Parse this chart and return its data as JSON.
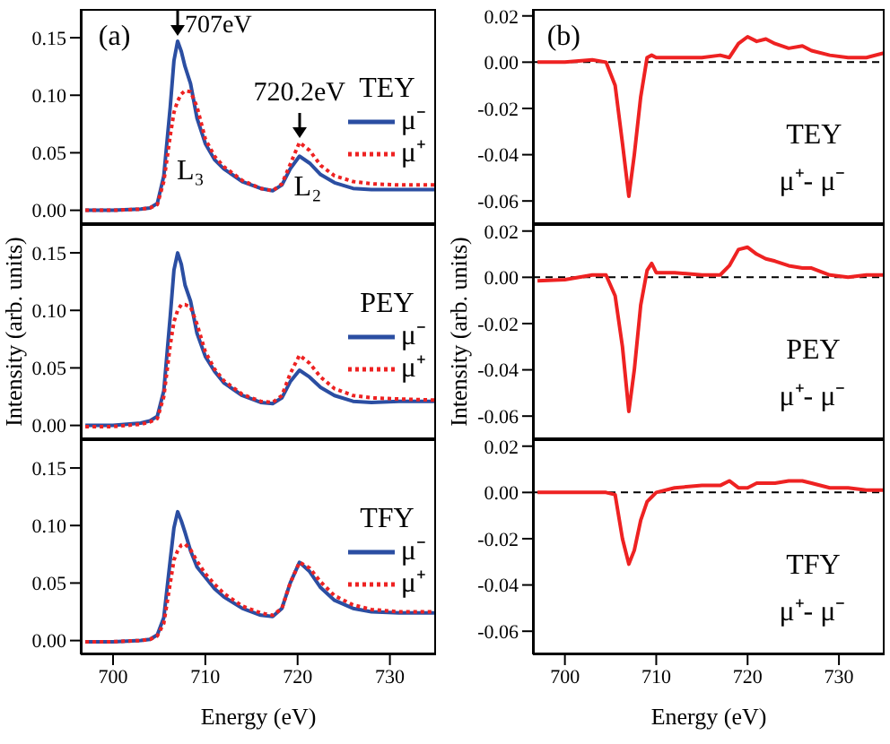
{
  "chart_data": [
    {
      "type": "line",
      "annotations": [
        "(a)",
        {
          "text": "707eV",
          "x": 707,
          "y": 0.15
        },
        {
          "text": "720.2eV",
          "x": 720.2,
          "y": 0.062
        },
        "L₃",
        "L₂"
      ],
      "legend_title": "TEY",
      "legend": "right",
      "marker": "none",
      "tick_labels": "y",
      "xlim": [
        696.5,
        735
      ],
      "xticks": [
        700,
        710,
        720,
        730
      ],
      "ylim": [
        -0.012,
        0.175
      ],
      "yticks": [
        {
          "value": 0,
          "label": "0.00"
        },
        {
          "value": 0.05,
          "label": "0.05"
        },
        {
          "value": 0.1,
          "label": "0.10"
        },
        {
          "value": 0.15,
          "label": "0.15"
        }
      ],
      "x": [
        697,
        700,
        703,
        704,
        704.8,
        705.5,
        706.2,
        706.6,
        707,
        707.4,
        707.8,
        708.4,
        709.1,
        710,
        711,
        712,
        714,
        716,
        717.3,
        718.3,
        719.2,
        720.2,
        721.3,
        722.5,
        724,
        726,
        728,
        731,
        735
      ],
      "series": [
        {
          "name": "μ⁻",
          "color": "#2b4ea2",
          "line_style": "solid",
          "values": [
            0,
            0,
            0.001,
            0.002,
            0.006,
            0.03,
            0.09,
            0.13,
            0.147,
            0.138,
            0.125,
            0.11,
            0.08,
            0.058,
            0.044,
            0.036,
            0.025,
            0.019,
            0.017,
            0.022,
            0.036,
            0.047,
            0.041,
            0.031,
            0.024,
            0.019,
            0.018,
            0.018,
            0.018
          ]
        },
        {
          "name": "μ⁺",
          "color": "#ee2222",
          "line_style": "dotted",
          "values": [
            0,
            0,
            0.001,
            0.002,
            0.005,
            0.025,
            0.065,
            0.085,
            0.095,
            0.101,
            0.104,
            0.103,
            0.09,
            0.062,
            0.047,
            0.038,
            0.026,
            0.019,
            0.017,
            0.023,
            0.04,
            0.059,
            0.052,
            0.039,
            0.03,
            0.025,
            0.023,
            0.022,
            0.022
          ]
        }
      ]
    },
    {
      "type": "line",
      "ylabel": "Intensity (arb. units)",
      "legend_title": "PEY",
      "legend": "right",
      "marker": "none",
      "tick_labels": "y",
      "xlim": [
        696.5,
        735
      ],
      "xticks": [
        700,
        710,
        720,
        730
      ],
      "ylim": [
        -0.012,
        0.175
      ],
      "yticks": [
        {
          "value": 0,
          "label": "0.00"
        },
        {
          "value": 0.05,
          "label": "0.05"
        },
        {
          "value": 0.1,
          "label": "0.10"
        },
        {
          "value": 0.15,
          "label": "0.15"
        }
      ],
      "x": [
        697,
        700,
        703,
        704,
        704.8,
        705.5,
        706.2,
        706.6,
        707,
        707.4,
        707.8,
        708.4,
        709.1,
        710,
        711,
        712,
        714,
        716,
        717.3,
        718.3,
        719.2,
        720.2,
        721.3,
        722.5,
        724,
        726,
        728,
        731,
        735
      ],
      "series": [
        {
          "name": "μ⁻",
          "color": "#2b4ea2",
          "line_style": "solid",
          "values": [
            0,
            0,
            0.002,
            0.004,
            0.008,
            0.03,
            0.095,
            0.135,
            0.15,
            0.14,
            0.122,
            0.108,
            0.08,
            0.06,
            0.047,
            0.037,
            0.026,
            0.02,
            0.019,
            0.024,
            0.038,
            0.048,
            0.042,
            0.033,
            0.026,
            0.021,
            0.02,
            0.021,
            0.021
          ]
        },
        {
          "name": "μ⁺",
          "color": "#ee2222",
          "line_style": "dotted",
          "values": [
            -0.001,
            -0.001,
            0.001,
            0.003,
            0.006,
            0.025,
            0.07,
            0.09,
            0.1,
            0.105,
            0.105,
            0.103,
            0.088,
            0.064,
            0.049,
            0.039,
            0.027,
            0.021,
            0.02,
            0.026,
            0.045,
            0.061,
            0.054,
            0.042,
            0.032,
            0.026,
            0.024,
            0.023,
            0.022
          ]
        }
      ]
    },
    {
      "type": "line",
      "xlabel": "Energy (eV)",
      "legend_title": "TFY",
      "legend": "right",
      "marker": "none",
      "xlim": [
        696.5,
        735
      ],
      "xticks": [
        700,
        710,
        720,
        730
      ],
      "ylim": [
        -0.012,
        0.175
      ],
      "yticks": [
        {
          "value": 0,
          "label": "0.00"
        },
        {
          "value": 0.05,
          "label": "0.05"
        },
        {
          "value": 0.1,
          "label": "0.10"
        },
        {
          "value": 0.15,
          "label": "0.15"
        }
      ],
      "x": [
        697,
        700,
        703,
        704,
        704.8,
        705.5,
        706.2,
        706.6,
        707,
        707.4,
        707.8,
        708.4,
        709.1,
        710,
        711,
        712,
        714,
        716,
        717.3,
        718.3,
        719.2,
        720.2,
        721.3,
        722.5,
        724,
        726,
        728,
        731,
        735
      ],
      "series": [
        {
          "name": "μ⁻",
          "color": "#2b4ea2",
          "line_style": "solid",
          "values": [
            -0.001,
            -0.001,
            0,
            0.001,
            0.005,
            0.02,
            0.07,
            0.098,
            0.112,
            0.104,
            0.094,
            0.078,
            0.064,
            0.055,
            0.045,
            0.038,
            0.028,
            0.022,
            0.021,
            0.028,
            0.05,
            0.068,
            0.06,
            0.046,
            0.035,
            0.028,
            0.025,
            0.024,
            0.024
          ]
        },
        {
          "name": "μ⁺",
          "color": "#ee2222",
          "line_style": "dotted",
          "values": [
            -0.001,
            -0.001,
            0,
            0.001,
            0.004,
            0.015,
            0.05,
            0.07,
            0.078,
            0.083,
            0.084,
            0.079,
            0.069,
            0.058,
            0.049,
            0.041,
            0.03,
            0.024,
            0.022,
            0.028,
            0.05,
            0.068,
            0.063,
            0.051,
            0.039,
            0.031,
            0.027,
            0.025,
            0.025
          ]
        }
      ]
    },
    {
      "type": "line",
      "annotations": [
        "(b)",
        "TEY",
        "μ⁺- μ⁻"
      ],
      "marker": "none",
      "tick_labels": "y",
      "xlim": [
        696.5,
        735
      ],
      "xticks": [
        700,
        710,
        720,
        730
      ],
      "ylim": [
        -0.07,
        0.023
      ],
      "yticks": [
        {
          "value": -0.06,
          "label": "-0.06"
        },
        {
          "value": -0.04,
          "label": "-0.04"
        },
        {
          "value": -0.02,
          "label": "-0.02"
        },
        {
          "value": 0,
          "label": "0.00"
        },
        {
          "value": 0.02,
          "label": "0.02"
        }
      ],
      "ref_lines": [
        {
          "axis": "y",
          "value": 0,
          "color": "#000000",
          "line_style": "dashed"
        }
      ],
      "x": [
        697,
        700,
        703,
        704.5,
        705.5,
        706.3,
        707,
        707.6,
        708.3,
        709,
        709.5,
        710,
        712,
        715,
        717,
        718,
        719,
        720,
        721,
        722,
        723,
        724.5,
        726,
        727,
        729,
        731,
        733,
        735
      ],
      "series": [
        {
          "color": "#ee2222",
          "line_style": "solid",
          "values": [
            0,
            0,
            0.001,
            0,
            -0.01,
            -0.035,
            -0.058,
            -0.04,
            -0.015,
            0.002,
            0.003,
            0.002,
            0.002,
            0.002,
            0.003,
            0.002,
            0.008,
            0.011,
            0.009,
            0.01,
            0.008,
            0.006,
            0.007,
            0.005,
            0.003,
            0.002,
            0.002,
            0.004
          ]
        }
      ]
    },
    {
      "type": "line",
      "annotations": [
        "PEY",
        "μ⁺- μ⁻"
      ],
      "ylabel": "Intensity (arb. units)",
      "marker": "none",
      "tick_labels": "y",
      "xlim": [
        696.5,
        735
      ],
      "xticks": [
        700,
        710,
        720,
        730
      ],
      "ylim": [
        -0.07,
        0.023
      ],
      "yticks": [
        {
          "value": -0.06,
          "label": "-0.06"
        },
        {
          "value": -0.04,
          "label": "-0.04"
        },
        {
          "value": -0.02,
          "label": "-0.02"
        },
        {
          "value": 0,
          "label": "0.00"
        },
        {
          "value": 0.02,
          "label": "0.02"
        }
      ],
      "ref_lines": [
        {
          "axis": "y",
          "value": 0,
          "color": "#000000",
          "line_style": "dashed"
        }
      ],
      "x": [
        697,
        700,
        703,
        704.5,
        705.5,
        706.3,
        707,
        707.6,
        708.3,
        709,
        709.5,
        710,
        712,
        715,
        717,
        718,
        719,
        720,
        721,
        722,
        723,
        724.5,
        726,
        727,
        729,
        731,
        733,
        735
      ],
      "series": [
        {
          "color": "#ee2222",
          "line_style": "solid",
          "values": [
            -0.0015,
            -0.001,
            0.001,
            0.001,
            -0.008,
            -0.03,
            -0.058,
            -0.04,
            -0.012,
            0.003,
            0.006,
            0.002,
            0.002,
            0.001,
            0.001,
            0.005,
            0.012,
            0.013,
            0.01,
            0.008,
            0.007,
            0.005,
            0.004,
            0.004,
            0.001,
            0,
            0.001,
            0.001
          ]
        }
      ]
    },
    {
      "type": "line",
      "annotations": [
        "TFY",
        "μ⁺- μ⁻"
      ],
      "xlabel": "Energy (eV)",
      "marker": "none",
      "xlim": [
        696.5,
        735
      ],
      "xticks": [
        700,
        710,
        720,
        730
      ],
      "ylim": [
        -0.07,
        0.023
      ],
      "yticks": [
        {
          "value": -0.06,
          "label": "-0.06"
        },
        {
          "value": -0.04,
          "label": "-0.04"
        },
        {
          "value": -0.02,
          "label": "-0.02"
        },
        {
          "value": 0,
          "label": "0.00"
        },
        {
          "value": 0.02,
          "label": "0.02"
        }
      ],
      "ref_lines": [
        {
          "axis": "y",
          "value": 0,
          "color": "#000000",
          "line_style": "dashed"
        }
      ],
      "x": [
        697,
        700,
        703,
        704.5,
        705.5,
        706.3,
        707,
        707.6,
        708.3,
        709,
        709.5,
        710,
        712,
        715,
        717,
        718,
        719,
        720,
        721,
        722,
        723,
        724.5,
        726,
        727,
        729,
        731,
        733,
        735
      ],
      "series": [
        {
          "color": "#ee2222",
          "line_style": "solid",
          "values": [
            0,
            0,
            0,
            0,
            -0.001,
            -0.02,
            -0.031,
            -0.025,
            -0.012,
            -0.004,
            -0.002,
            0,
            0.002,
            0.003,
            0.003,
            0.005,
            0.002,
            0.002,
            0.004,
            0.004,
            0.004,
            0.005,
            0.005,
            0.004,
            0.002,
            0.002,
            0.001,
            0.001
          ]
        }
      ]
    }
  ]
}
